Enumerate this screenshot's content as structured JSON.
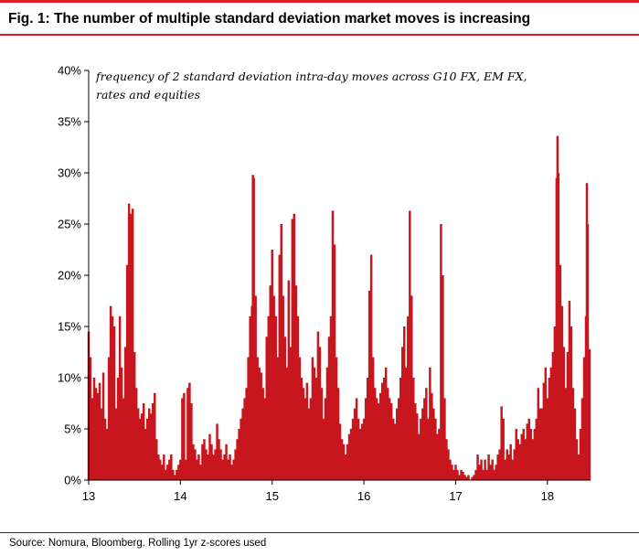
{
  "figure": {
    "title": "Fig. 1: The number of multiple standard deviation market moves is increasing",
    "source": "Source: Nomura, Bloomberg. Rolling 1yr z-scores used"
  },
  "colors": {
    "accent": "#e31b23",
    "bars": "#c8161e"
  },
  "chart_data": {
    "type": "bar",
    "annotation_lines": [
      "frequency of 2 standard deviation intra-day moves  across G10 FX, EM FX,",
      "rates and equities"
    ],
    "x_tick_labels": [
      "13",
      "14",
      "15",
      "16",
      "17",
      "18"
    ],
    "y_tick_labels": [
      "0%",
      "5%",
      "10%",
      "15%",
      "20%",
      "25%",
      "30%",
      "35%",
      "40%"
    ],
    "ylim": [
      0,
      40
    ],
    "y_unit": "%",
    "xlim": [
      13.0,
      18.47
    ],
    "grid": false,
    "points": [
      [
        13.0,
        14.5
      ],
      [
        13.02,
        12.0
      ],
      [
        13.04,
        8.0
      ],
      [
        13.06,
        10.0
      ],
      [
        13.08,
        9.0
      ],
      [
        13.1,
        8.5
      ],
      [
        13.12,
        9.5
      ],
      [
        13.14,
        7.0
      ],
      [
        13.16,
        10.5
      ],
      [
        13.18,
        6.0
      ],
      [
        13.2,
        5.0
      ],
      [
        13.22,
        12.0
      ],
      [
        13.24,
        17.0
      ],
      [
        13.26,
        16.0
      ],
      [
        13.28,
        15.0
      ],
      [
        13.3,
        7.0
      ],
      [
        13.32,
        10.0
      ],
      [
        13.34,
        16.0
      ],
      [
        13.36,
        11.0
      ],
      [
        13.38,
        8.0
      ],
      [
        13.4,
        13.0
      ],
      [
        13.42,
        21.0
      ],
      [
        13.44,
        27.0
      ],
      [
        13.46,
        26.0
      ],
      [
        13.48,
        26.5
      ],
      [
        13.5,
        12.5
      ],
      [
        13.52,
        9.0
      ],
      [
        13.54,
        7.0
      ],
      [
        13.56,
        6.0
      ],
      [
        13.58,
        6.5
      ],
      [
        13.6,
        7.5
      ],
      [
        13.62,
        5.0
      ],
      [
        13.64,
        6.0
      ],
      [
        13.66,
        7.0
      ],
      [
        13.68,
        6.5
      ],
      [
        13.7,
        7.5
      ],
      [
        13.72,
        8.5
      ],
      [
        13.74,
        4.0
      ],
      [
        13.76,
        2.5
      ],
      [
        13.78,
        2.0
      ],
      [
        13.8,
        1.5
      ],
      [
        13.82,
        2.5
      ],
      [
        13.84,
        1.0
      ],
      [
        13.86,
        1.5
      ],
      [
        13.88,
        2.0
      ],
      [
        13.9,
        2.5
      ],
      [
        13.92,
        1.0
      ],
      [
        13.94,
        0.5
      ],
      [
        13.96,
        1.0
      ],
      [
        13.98,
        1.5
      ],
      [
        14.0,
        2.0
      ],
      [
        14.02,
        8.0
      ],
      [
        14.04,
        8.5
      ],
      [
        14.06,
        2.0
      ],
      [
        14.08,
        9.0
      ],
      [
        14.1,
        9.5
      ],
      [
        14.12,
        7.5
      ],
      [
        14.14,
        3.5
      ],
      [
        14.16,
        3.0
      ],
      [
        14.18,
        2.0
      ],
      [
        14.2,
        2.5
      ],
      [
        14.22,
        1.5
      ],
      [
        14.24,
        3.5
      ],
      [
        14.26,
        4.0
      ],
      [
        14.28,
        3.0
      ],
      [
        14.3,
        2.5
      ],
      [
        14.32,
        4.5
      ],
      [
        14.34,
        3.5
      ],
      [
        14.36,
        2.5
      ],
      [
        14.38,
        3.0
      ],
      [
        14.4,
        5.5
      ],
      [
        14.42,
        4.0
      ],
      [
        14.44,
        3.0
      ],
      [
        14.46,
        2.0
      ],
      [
        14.48,
        2.5
      ],
      [
        14.5,
        3.5
      ],
      [
        14.52,
        2.0
      ],
      [
        14.54,
        2.5
      ],
      [
        14.56,
        1.5
      ],
      [
        14.58,
        2.0
      ],
      [
        14.6,
        3.0
      ],
      [
        14.62,
        4.0
      ],
      [
        14.64,
        5.0
      ],
      [
        14.66,
        6.0
      ],
      [
        14.68,
        7.0
      ],
      [
        14.7,
        8.0
      ],
      [
        14.72,
        9.0
      ],
      [
        14.74,
        12.0
      ],
      [
        14.76,
        16.0
      ],
      [
        14.78,
        17.0
      ],
      [
        14.79,
        29.8
      ],
      [
        14.8,
        29.5
      ],
      [
        14.82,
        18.0
      ],
      [
        14.84,
        12.0
      ],
      [
        14.86,
        11.0
      ],
      [
        14.88,
        10.5
      ],
      [
        14.9,
        9.0
      ],
      [
        14.92,
        8.0
      ],
      [
        14.94,
        14.0
      ],
      [
        14.96,
        16.0
      ],
      [
        14.98,
        19.0
      ],
      [
        15.0,
        22.5
      ],
      [
        15.02,
        18.0
      ],
      [
        15.04,
        16.0
      ],
      [
        15.06,
        12.0
      ],
      [
        15.08,
        22.0
      ],
      [
        15.1,
        25.0
      ],
      [
        15.12,
        18.0
      ],
      [
        15.14,
        14.0
      ],
      [
        15.16,
        11.0
      ],
      [
        15.18,
        19.5
      ],
      [
        15.2,
        13.0
      ],
      [
        15.22,
        25.5
      ],
      [
        15.24,
        26.0
      ],
      [
        15.26,
        19.0
      ],
      [
        15.28,
        16.0
      ],
      [
        15.3,
        12.0
      ],
      [
        15.32,
        10.0
      ],
      [
        15.34,
        9.0
      ],
      [
        15.36,
        8.0
      ],
      [
        15.38,
        9.5
      ],
      [
        15.4,
        7.0
      ],
      [
        15.42,
        8.0
      ],
      [
        15.44,
        12.0
      ],
      [
        15.46,
        11.0
      ],
      [
        15.48,
        10.0
      ],
      [
        15.5,
        14.5
      ],
      [
        15.52,
        13.0
      ],
      [
        15.54,
        9.0
      ],
      [
        15.56,
        6.0
      ],
      [
        15.58,
        8.0
      ],
      [
        15.6,
        11.0
      ],
      [
        15.62,
        14.0
      ],
      [
        15.64,
        16.0
      ],
      [
        15.66,
        26.3
      ],
      [
        15.68,
        23.0
      ],
      [
        15.7,
        12.0
      ],
      [
        15.72,
        9.0
      ],
      [
        15.74,
        5.5
      ],
      [
        15.76,
        4.0
      ],
      [
        15.78,
        3.5
      ],
      [
        15.8,
        2.5
      ],
      [
        15.82,
        3.5
      ],
      [
        15.84,
        4.5
      ],
      [
        15.86,
        5.0
      ],
      [
        15.88,
        6.0
      ],
      [
        15.9,
        7.0
      ],
      [
        15.92,
        8.0
      ],
      [
        15.94,
        6.0
      ],
      [
        15.96,
        5.0
      ],
      [
        15.98,
        5.5
      ],
      [
        16.0,
        6.0
      ],
      [
        16.02,
        8.0
      ],
      [
        16.04,
        10.0
      ],
      [
        16.06,
        18.5
      ],
      [
        16.08,
        22.0
      ],
      [
        16.1,
        12.0
      ],
      [
        16.12,
        9.0
      ],
      [
        16.14,
        8.0
      ],
      [
        16.16,
        7.5
      ],
      [
        16.18,
        8.5
      ],
      [
        16.2,
        9.5
      ],
      [
        16.22,
        10.0
      ],
      [
        16.24,
        11.0
      ],
      [
        16.26,
        9.0
      ],
      [
        16.28,
        8.0
      ],
      [
        16.3,
        7.5
      ],
      [
        16.32,
        6.0
      ],
      [
        16.34,
        5.5
      ],
      [
        16.36,
        7.0
      ],
      [
        16.38,
        8.0
      ],
      [
        16.4,
        10.0
      ],
      [
        16.42,
        13.0
      ],
      [
        16.44,
        15.0
      ],
      [
        16.46,
        11.0
      ],
      [
        16.48,
        16.0
      ],
      [
        16.5,
        26.3
      ],
      [
        16.52,
        18.0
      ],
      [
        16.54,
        10.0
      ],
      [
        16.56,
        7.5
      ],
      [
        16.58,
        6.5
      ],
      [
        16.6,
        4.5
      ],
      [
        16.62,
        6.0
      ],
      [
        16.64,
        7.0
      ],
      [
        16.66,
        8.0
      ],
      [
        16.68,
        9.0
      ],
      [
        16.7,
        6.0
      ],
      [
        16.72,
        11.0
      ],
      [
        16.74,
        8.5
      ],
      [
        16.76,
        7.0
      ],
      [
        16.78,
        6.0
      ],
      [
        16.8,
        4.5
      ],
      [
        16.82,
        5.0
      ],
      [
        16.84,
        25.0
      ],
      [
        16.86,
        20.0
      ],
      [
        16.88,
        8.0
      ],
      [
        16.9,
        4.0
      ],
      [
        16.92,
        3.0
      ],
      [
        16.94,
        2.0
      ],
      [
        16.96,
        1.5
      ],
      [
        16.98,
        1.0
      ],
      [
        17.0,
        1.5
      ],
      [
        17.02,
        1.0
      ],
      [
        17.04,
        0.5
      ],
      [
        17.06,
        1.0
      ],
      [
        17.08,
        0.8
      ],
      [
        17.1,
        0.5
      ],
      [
        17.12,
        0.3
      ],
      [
        17.14,
        0.5
      ],
      [
        17.16,
        0.0
      ],
      [
        17.18,
        0.3
      ],
      [
        17.2,
        0.5
      ],
      [
        17.22,
        1.0
      ],
      [
        17.24,
        2.5
      ],
      [
        17.26,
        1.5
      ],
      [
        17.28,
        2.0
      ],
      [
        17.3,
        1.0
      ],
      [
        17.32,
        2.0
      ],
      [
        17.34,
        1.0
      ],
      [
        17.36,
        2.5
      ],
      [
        17.38,
        1.5
      ],
      [
        17.4,
        2.0
      ],
      [
        17.42,
        1.0
      ],
      [
        17.44,
        1.5
      ],
      [
        17.46,
        2.5
      ],
      [
        17.48,
        3.0
      ],
      [
        17.5,
        7.2
      ],
      [
        17.52,
        6.0
      ],
      [
        17.54,
        2.0
      ],
      [
        17.56,
        3.0
      ],
      [
        17.58,
        2.5
      ],
      [
        17.6,
        3.5
      ],
      [
        17.62,
        2.0
      ],
      [
        17.64,
        3.0
      ],
      [
        17.66,
        5.0
      ],
      [
        17.68,
        4.0
      ],
      [
        17.7,
        3.5
      ],
      [
        17.72,
        4.5
      ],
      [
        17.74,
        5.0
      ],
      [
        17.76,
        4.0
      ],
      [
        17.78,
        5.5
      ],
      [
        17.8,
        6.0
      ],
      [
        17.82,
        5.0
      ],
      [
        17.84,
        4.0
      ],
      [
        17.86,
        5.0
      ],
      [
        17.88,
        6.0
      ],
      [
        17.9,
        9.0
      ],
      [
        17.92,
        7.0
      ],
      [
        17.94,
        7.0
      ],
      [
        17.96,
        9.5
      ],
      [
        17.98,
        11.0
      ],
      [
        18.0,
        8.0
      ],
      [
        18.02,
        10.0
      ],
      [
        18.04,
        11.0
      ],
      [
        18.06,
        12.5
      ],
      [
        18.08,
        15.0
      ],
      [
        18.1,
        29.5
      ],
      [
        18.11,
        33.6
      ],
      [
        18.12,
        30.0
      ],
      [
        18.14,
        21.0
      ],
      [
        18.16,
        17.0
      ],
      [
        18.18,
        13.0
      ],
      [
        18.2,
        9.0
      ],
      [
        18.22,
        12.5
      ],
      [
        18.24,
        17.5
      ],
      [
        18.26,
        15.0
      ],
      [
        18.28,
        9.0
      ],
      [
        18.3,
        7.0
      ],
      [
        18.32,
        4.0
      ],
      [
        18.34,
        2.5
      ],
      [
        18.36,
        5.0
      ],
      [
        18.38,
        8.0
      ],
      [
        18.4,
        12.0
      ],
      [
        18.42,
        16.0
      ],
      [
        18.43,
        29.0
      ],
      [
        18.44,
        25.0
      ],
      [
        18.45,
        11.0
      ],
      [
        18.46,
        12.8
      ]
    ]
  }
}
